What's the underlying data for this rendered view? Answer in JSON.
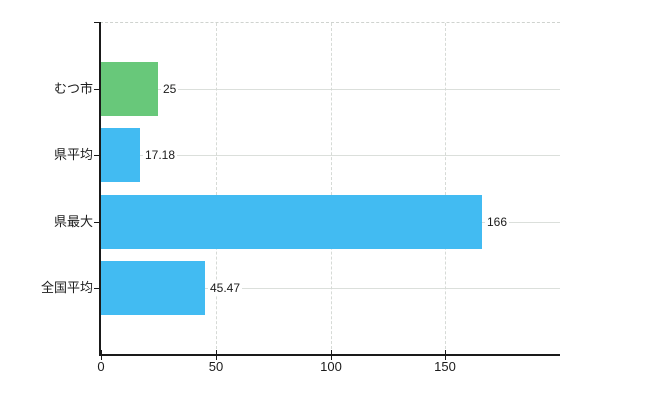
{
  "chart_data": {
    "type": "bar",
    "orientation": "horizontal",
    "title": "",
    "xlabel": "",
    "ylabel": "",
    "categories": [
      "むつ市",
      "県平均",
      "県最大",
      "全国平均"
    ],
    "values": [
      25,
      17.18,
      166,
      45.47
    ],
    "value_labels": [
      "25",
      "17.18",
      "166",
      "45.47"
    ],
    "bar_colors": [
      "#68c87a",
      "#42bbf2",
      "#42bbf2",
      "#42bbf2"
    ],
    "xlim": [
      0,
      200
    ],
    "x_ticks": [
      0,
      50,
      100,
      150
    ],
    "x_tick_labels": [
      "0",
      "50",
      "100",
      "150"
    ],
    "grid": true,
    "legend": false
  },
  "colors": {
    "background": "#ffffff",
    "axis": "#1a1a1a",
    "grid_horizontal": "#dbdfdb",
    "grid_vertical": "#d6dad6",
    "plot_top_border": "#cfd3cf",
    "text": "#1c1c1c",
    "bar_green": "#68c87a",
    "bar_blue": "#42bbf2"
  }
}
